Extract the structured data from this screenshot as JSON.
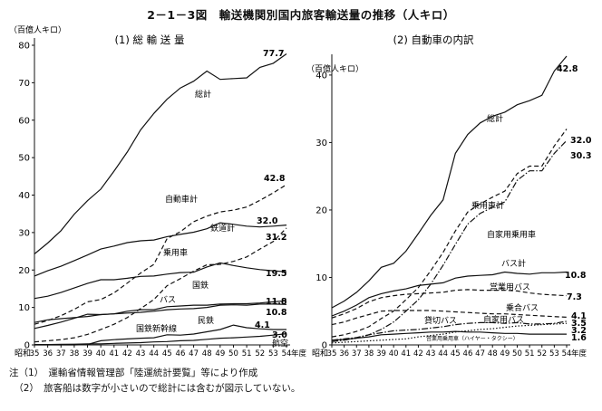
{
  "title": "2－1－3図　輸送機関別国内旅客輸送量の推移（人キロ）",
  "notes": [
    "注（1）　運輸省情報管理部「陸運統計要覧」等により作成",
    "　（2）　旅客船は数字が小さいので総計には含むが図示していない。"
  ],
  "chart_data": [
    {
      "type": "line",
      "title": "(1)  総 輸 送 量",
      "ylabel": "（百億人キロ）",
      "x_prefix": "昭和",
      "x_suffix": "年度",
      "categories": [
        "35",
        "36",
        "37",
        "38",
        "39",
        "40",
        "41",
        "42",
        "43",
        "44",
        "45",
        "46",
        "47",
        "48",
        "49",
        "50",
        "51",
        "52",
        "53",
        "54"
      ],
      "ylim": [
        0,
        80
      ],
      "yticks": [
        0,
        10,
        20,
        30,
        40,
        50,
        60,
        70,
        80
      ],
      "series": [
        {
          "name": "総計",
          "style": "solid",
          "end_label": "77.7",
          "values": [
            24.3,
            27.2,
            30.5,
            34.9,
            38.5,
            41.6,
            46.4,
            51.5,
            57.4,
            61.8,
            65.6,
            68.6,
            70.4,
            73.1,
            70.9,
            71.1,
            71.3,
            74.1,
            75.2,
            77.7
          ]
        },
        {
          "name": "自動車計",
          "style": "dashed",
          "end_label": "42.8",
          "values": [
            5.5,
            6.5,
            7.8,
            9.5,
            11.5,
            12.1,
            13.9,
            16.5,
            19.2,
            21.5,
            28.4,
            30.2,
            32.9,
            34.4,
            35.5,
            36.0,
            36.8,
            38.6,
            40.6,
            42.8
          ]
        },
        {
          "name": "鉄道計",
          "style": "solid",
          "end_label": "32.0",
          "values": [
            18.4,
            19.8,
            21.0,
            22.5,
            24.0,
            25.6,
            26.4,
            27.3,
            27.8,
            28.0,
            28.9,
            29.5,
            30.1,
            31.0,
            32.6,
            32.2,
            31.7,
            31.5,
            31.7,
            32.0
          ]
        },
        {
          "name": "乗用車",
          "style": "dashed",
          "end_label": "31.2",
          "values": [
            0.8,
            1.1,
            1.4,
            1.9,
            2.8,
            4.1,
            5.5,
            7.3,
            9.7,
            12.1,
            15.8,
            17.7,
            19.7,
            21.4,
            21.5,
            22.3,
            23.5,
            25.6,
            27.6,
            31.2
          ]
        },
        {
          "name": "国鉄",
          "style": "solid",
          "end_label": "19.5",
          "values": [
            12.4,
            13.0,
            14.0,
            15.2,
            16.4,
            17.4,
            17.4,
            17.8,
            18.3,
            18.4,
            18.9,
            19.3,
            19.4,
            20.8,
            21.9,
            21.2,
            20.6,
            20.1,
            19.8,
            19.5
          ]
        },
        {
          "name": "バス",
          "style": "solid",
          "end_label": "11.8",
          "values": [
            4.4,
            5.2,
            6.1,
            7.1,
            8.2,
            8.1,
            8.3,
            9.0,
            9.4,
            9.4,
            10.2,
            10.4,
            10.6,
            10.6,
            10.9,
            11.0,
            11.0,
            11.2,
            11.5,
            11.8
          ]
        },
        {
          "name": "民鉄",
          "style": "solid",
          "end_label": "10.8",
          "values": [
            6.0,
            6.7,
            7.0,
            7.3,
            7.6,
            8.1,
            8.3,
            8.5,
            8.7,
            9.0,
            9.4,
            9.6,
            9.7,
            10.0,
            10.6,
            10.7,
            10.6,
            10.9,
            10.9,
            10.8
          ]
        },
        {
          "name": "国鉄新幹線",
          "style": "solid",
          "end_label": "4.1",
          "values": [
            0,
            0,
            0,
            0,
            0.1,
            1.1,
            1.4,
            1.6,
            1.8,
            1.9,
            2.7,
            2.6,
            2.9,
            3.5,
            4.1,
            5.3,
            4.6,
            4.3,
            4.1,
            4.1
          ]
        },
        {
          "name": "航空",
          "style": "solid",
          "end_label": "3.0",
          "values": [
            0.1,
            0.1,
            0.15,
            0.2,
            0.3,
            0.3,
            0.4,
            0.5,
            0.6,
            0.8,
            0.9,
            1.1,
            1.2,
            1.5,
            1.8,
            1.9,
            2.1,
            2.3,
            2.6,
            3.0
          ]
        }
      ]
    },
    {
      "type": "line",
      "title": "(2)  自動車の内訳",
      "ylabel": "（百億人キロ）",
      "x_prefix": "昭和",
      "x_suffix": "年度",
      "categories": [
        "35",
        "36",
        "37",
        "38",
        "39",
        "40",
        "41",
        "42",
        "43",
        "44",
        "45",
        "46",
        "47",
        "48",
        "49",
        "50",
        "51",
        "52",
        "53",
        "54"
      ],
      "ylim": [
        0,
        42
      ],
      "yticks": [
        0,
        10,
        20,
        30,
        40
      ],
      "series": [
        {
          "name": "総計",
          "style": "solid",
          "end_label": "42.8",
          "values": [
            5.5,
            6.5,
            7.8,
            9.5,
            11.5,
            12.1,
            13.9,
            16.5,
            19.2,
            21.5,
            28.4,
            31.2,
            32.9,
            33.9,
            34.5,
            35.6,
            36.2,
            37.0,
            40.6,
            42.8
          ]
        },
        {
          "name": "乗用車計",
          "style": "dashed",
          "end_label": "32.0",
          "values": [
            1.2,
            1.5,
            2.0,
            2.7,
            3.9,
            5.0,
            6.7,
            8.5,
            11.0,
            13.7,
            16.9,
            19.7,
            20.9,
            21.9,
            22.8,
            25.4,
            26.5,
            26.5,
            29.5,
            32.0
          ]
        },
        {
          "name": "自家用乗用車",
          "style": "dashdot",
          "end_label": "30.3",
          "values": [
            0.5,
            0.7,
            1.0,
            1.5,
            2.3,
            3.4,
            5.0,
            6.7,
            9.0,
            11.8,
            14.9,
            17.9,
            19.5,
            20.4,
            21.2,
            24.4,
            25.8,
            25.8,
            28.4,
            30.3
          ]
        },
        {
          "name": "バス計",
          "style": "solid",
          "end_label": "10.8",
          "values": [
            4.3,
            5.0,
            5.9,
            7.0,
            7.6,
            8.0,
            8.3,
            8.8,
            9.0,
            9.2,
            9.9,
            10.2,
            10.3,
            10.4,
            10.8,
            10.6,
            10.5,
            10.7,
            10.7,
            10.8
          ]
        },
        {
          "name": "営業用バス",
          "style": "dashed",
          "end_label": "7.3",
          "values": [
            4.0,
            4.6,
            5.4,
            6.4,
            7.0,
            7.3,
            7.5,
            7.6,
            7.7,
            7.8,
            8.1,
            8.2,
            8.1,
            8.1,
            8.1,
            8.0,
            7.7,
            7.5,
            7.4,
            7.3
          ]
        },
        {
          "name": "乗合バス",
          "style": "dashed",
          "end_label": "4.1",
          "values": [
            3.0,
            3.4,
            4.0,
            4.5,
            5.0,
            5.1,
            5.1,
            5.1,
            5.1,
            5.0,
            4.9,
            4.8,
            4.7,
            4.6,
            4.6,
            4.5,
            4.4,
            4.3,
            4.2,
            4.1
          ]
        },
        {
          "name": "貸切バス",
          "style": "dashdot",
          "end_label": "3.5",
          "values": [
            0.7,
            0.9,
            1.1,
            1.5,
            1.8,
            2.1,
            2.2,
            2.3,
            2.5,
            2.7,
            3.0,
            3.2,
            3.3,
            3.3,
            3.2,
            3.3,
            3.1,
            3.1,
            3.2,
            3.5
          ]
        },
        {
          "name": "自家用バス",
          "style": "dotted",
          "end_label": "3.2",
          "values": [
            0.3,
            0.4,
            0.5,
            0.6,
            0.7,
            0.8,
            0.9,
            1.2,
            1.4,
            1.6,
            1.9,
            2.1,
            2.3,
            2.4,
            2.6,
            2.8,
            2.9,
            3.0,
            3.1,
            3.2
          ]
        },
        {
          "name": "営業用乗用車（ハイヤー・タクシー）",
          "style": "solid",
          "end_label": "1.6",
          "values": [
            0.7,
            0.8,
            1.0,
            1.2,
            1.5,
            1.6,
            1.7,
            1.8,
            1.9,
            1.9,
            2.0,
            1.9,
            1.9,
            1.8,
            1.7,
            1.7,
            1.6,
            1.6,
            1.6,
            1.6
          ]
        }
      ]
    }
  ]
}
